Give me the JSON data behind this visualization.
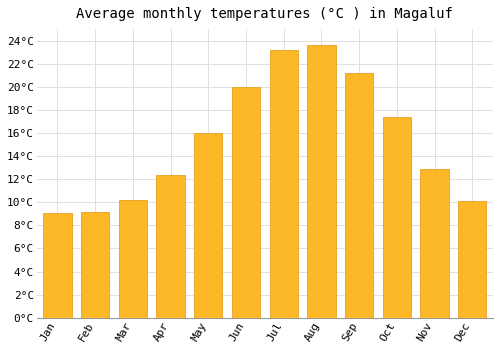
{
  "title": "Average monthly temperatures (°C ) in Magaluf",
  "months": [
    "Jan",
    "Feb",
    "Mar",
    "Apr",
    "May",
    "Jun",
    "Jul",
    "Aug",
    "Sep",
    "Oct",
    "Nov",
    "Dec"
  ],
  "temperatures": [
    9.1,
    9.2,
    10.2,
    12.4,
    16.0,
    20.0,
    23.2,
    23.6,
    21.2,
    17.4,
    12.9,
    10.1
  ],
  "bar_color": "#FDB827",
  "bar_edge_color": "#E8A020",
  "background_color": "#FFFFFF",
  "grid_color": "#E0E0E0",
  "ylim": [
    0,
    25
  ],
  "ytick_step": 2,
  "title_fontsize": 10,
  "tick_fontsize": 8,
  "font_family": "monospace",
  "bar_width": 0.75
}
